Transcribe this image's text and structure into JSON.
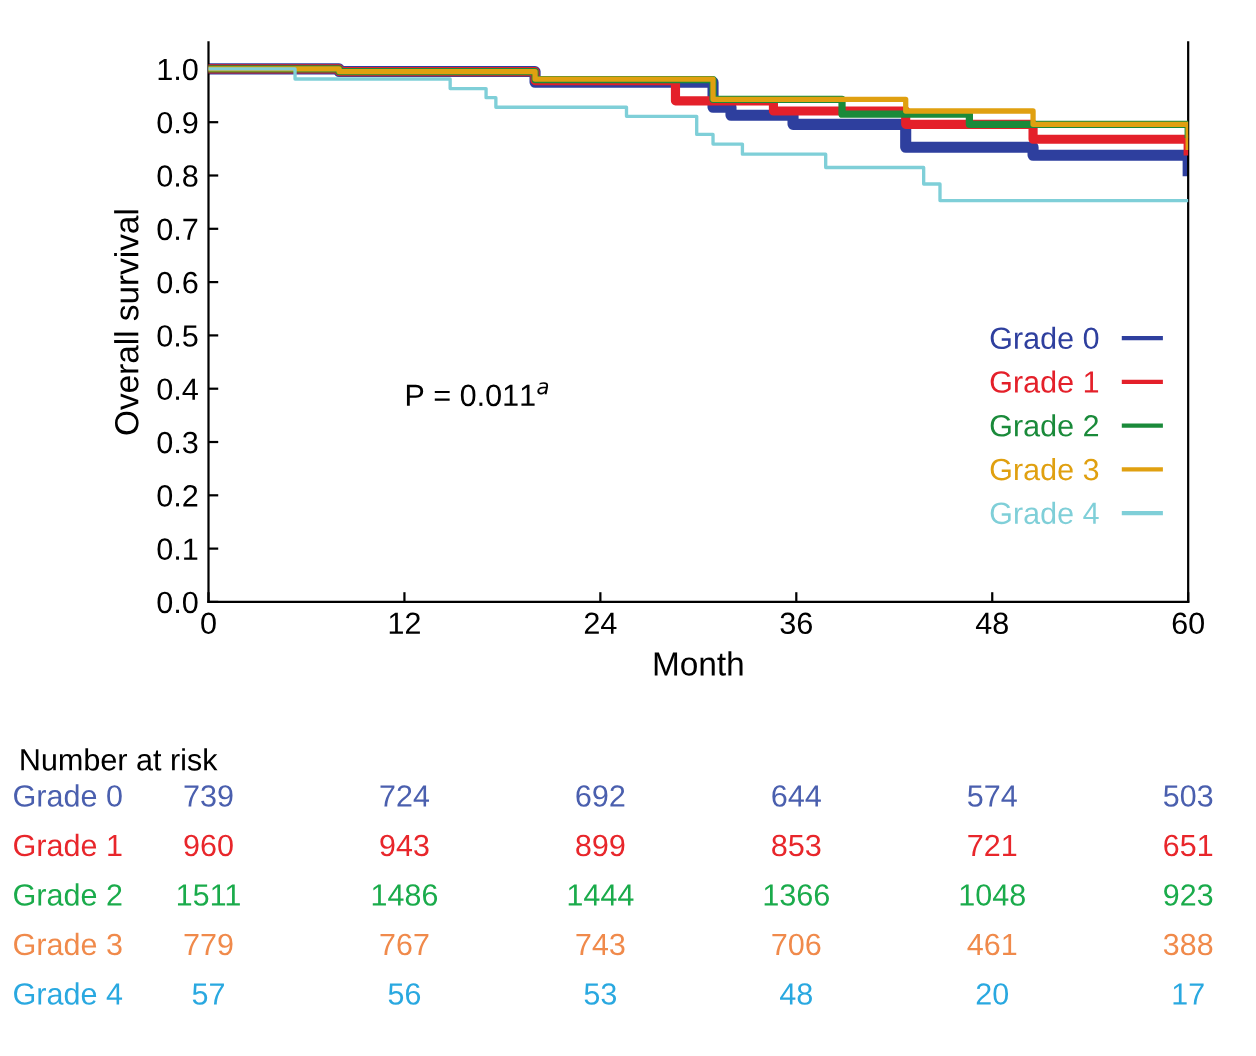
{
  "chart_data": [
    {
      "type": "step",
      "xlabel": "Month",
      "ylabel": "Overall survival",
      "xlim": [
        0,
        60
      ],
      "xticks": [
        0,
        12,
        24,
        36,
        48,
        60
      ],
      "ylim": [
        0,
        1.05
      ],
      "yticks": [
        {
          "value": 0,
          "label": "0.0"
        },
        {
          "value": 0.1,
          "label": "0.1"
        },
        {
          "value": 0.2,
          "label": "0.2"
        },
        {
          "value": 0.3,
          "label": "0.3"
        },
        {
          "value": 0.4,
          "label": "0.4"
        },
        {
          "value": 0.5,
          "label": "0.5"
        },
        {
          "value": 0.6,
          "label": "0.6"
        },
        {
          "value": 0.7,
          "label": "0.7"
        },
        {
          "value": 0.8,
          "label": "0.8"
        },
        {
          "value": 0.9,
          "label": "0.9"
        },
        {
          "value": 1.0,
          "label": "1.0"
        }
      ],
      "legend": "right",
      "grid": false,
      "annotations": [
        "P = 0.011$^{a}$"
      ],
      "series": [
        {
          "name": "Grade 0",
          "color": "#2e3f9e",
          "x": [
            0,
            8,
            20,
            30.9,
            32,
            35.8,
            42.7,
            50.5,
            60
          ],
          "values": [
            1.0,
            0.995,
            0.975,
            0.928,
            0.913,
            0.896,
            0.853,
            0.838,
            0.809
          ]
        },
        {
          "name": "Grade 1",
          "color": "#e4202a",
          "x": [
            0,
            8,
            20,
            28.6,
            34.6,
            42.7,
            50.5,
            60
          ],
          "values": [
            1.0,
            0.995,
            0.978,
            0.94,
            0.921,
            0.896,
            0.868,
            0.846
          ]
        },
        {
          "name": "Grade 2",
          "color": "#1a8a3a",
          "x": [
            0,
            8,
            20,
            30.9,
            38.8,
            46.6,
            60
          ],
          "values": [
            1.0,
            0.995,
            0.98,
            0.943,
            0.915,
            0.896,
            0.877
          ]
        },
        {
          "name": "Grade 3",
          "color": "#e0a010",
          "x": [
            0,
            8,
            20,
            30.9,
            42.7,
            50.5,
            60
          ],
          "values": [
            1.0,
            0.995,
            0.981,
            0.943,
            0.921,
            0.896,
            0.853
          ]
        },
        {
          "name": "Grade 4",
          "color": "#7fcfd8",
          "x": [
            0,
            5.3,
            14.8,
            17.0,
            17.6,
            25.6,
            29.9,
            30.9,
            32.7,
            37.8,
            43.8,
            44.8,
            60
          ],
          "values": [
            1.0,
            0.981,
            0.963,
            0.946,
            0.928,
            0.911,
            0.877,
            0.859,
            0.84,
            0.815,
            0.784,
            0.753,
            0.753
          ]
        }
      ]
    },
    {
      "type": "other",
      "title": "Number at risk",
      "y_categories": [
        "Grade 0",
        "Grade 1",
        "Grade 2",
        "Grade 3",
        "Grade 4"
      ],
      "colors": [
        "#4a5fae",
        "#e8262b",
        "#1aab4b",
        "#f08a4b",
        "#29a8e0"
      ],
      "annotations": [
        "739",
        "724",
        "692",
        "644",
        "574",
        "503",
        "960",
        "943",
        "899",
        "853",
        "721",
        "651",
        "1511",
        "1486",
        "1444",
        "1366",
        "1048",
        "923",
        "779",
        "767",
        "743",
        "706",
        "461",
        "388",
        "57",
        "56",
        "53",
        "48",
        "20",
        "17"
      ]
    }
  ]
}
